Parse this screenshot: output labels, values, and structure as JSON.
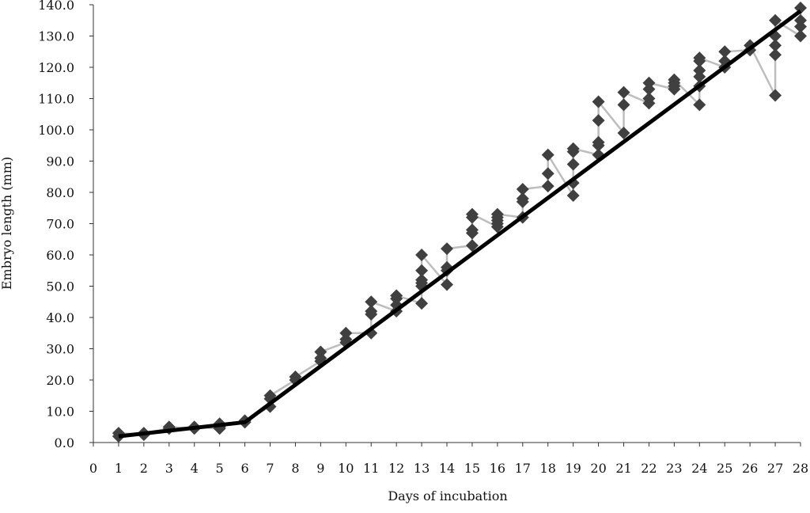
{
  "chart_data": {
    "type": "scatter",
    "x_label": "Days of incubation",
    "y_label": "Embryo length (mm)",
    "xlim": [
      0,
      28
    ],
    "ylim": [
      0,
      140
    ],
    "xticks": [
      0,
      1,
      2,
      3,
      4,
      5,
      6,
      7,
      8,
      9,
      10,
      11,
      12,
      13,
      14,
      15,
      16,
      17,
      18,
      19,
      20,
      21,
      22,
      23,
      24,
      25,
      26,
      27,
      28
    ],
    "yticks": [
      {
        "value": 0,
        "label": "0.0"
      },
      {
        "value": 10,
        "label": "10.0"
      },
      {
        "value": 20,
        "label": "20.0"
      },
      {
        "value": 30,
        "label": "30.0"
      },
      {
        "value": 40,
        "label": "40.0"
      },
      {
        "value": 50,
        "label": "50.0"
      },
      {
        "value": 60,
        "label": "60.0"
      },
      {
        "value": 70,
        "label": "70.0"
      },
      {
        "value": 80,
        "label": "80.0"
      },
      {
        "value": 90,
        "label": "90.0"
      },
      {
        "value": 100,
        "label": "100.0"
      },
      {
        "value": 110,
        "label": "110.0"
      },
      {
        "value": 120,
        "label": "120.0"
      },
      {
        "value": 130,
        "label": "130.0"
      },
      {
        "value": 140,
        "label": "140.0"
      }
    ],
    "series": [
      {
        "color": "#404040",
        "line_color": "#bdbdbd",
        "markers": true,
        "line_width": 2.5,
        "x": [
          1,
          1,
          2,
          2,
          3,
          3,
          4,
          4,
          5,
          5,
          5,
          6,
          6,
          7,
          7,
          7,
          8,
          8,
          9,
          9,
          9,
          10,
          10,
          10,
          11,
          11,
          11,
          11,
          12,
          12,
          12,
          12,
          13,
          13,
          13,
          13,
          13,
          13,
          14,
          14,
          14,
          14,
          15,
          15,
          15,
          15,
          15,
          16,
          16,
          16,
          16,
          16,
          17,
          17,
          17,
          17,
          18,
          18,
          18,
          19,
          19,
          19,
          19,
          19,
          20,
          20,
          20,
          20,
          20,
          21,
          21,
          21,
          22,
          22,
          22,
          22,
          23,
          23,
          23,
          23,
          24,
          24,
          24,
          24,
          24,
          24,
          25,
          25,
          25,
          26,
          26,
          27,
          27,
          27,
          27,
          27,
          28,
          28,
          28,
          28
        ],
        "values": [
          2,
          3,
          2.5,
          3,
          4.5,
          5,
          4.5,
          5,
          4.5,
          5,
          6,
          6.5,
          7,
          11.5,
          14,
          15,
          20,
          21,
          26,
          27,
          29,
          32,
          33,
          35,
          35,
          41,
          42,
          45,
          42,
          44,
          46,
          47,
          44.5,
          50,
          51,
          52,
          55,
          60,
          50.5,
          55,
          56,
          62,
          63,
          67,
          68,
          72,
          73,
          69,
          70,
          71,
          72,
          73,
          72,
          77,
          78,
          81,
          82,
          86,
          92,
          79,
          83,
          89,
          93,
          94,
          92,
          95,
          96,
          103,
          109,
          99,
          108,
          112,
          108.5,
          110,
          113,
          115,
          113,
          114,
          115,
          116,
          108,
          114,
          117,
          119,
          122,
          123,
          120,
          122,
          125,
          125.5,
          127,
          111,
          124,
          127,
          130,
          135,
          130,
          133,
          135,
          139
        ]
      },
      {
        "color": "#000000",
        "line_color": "#000000",
        "markers": false,
        "line_width": 5,
        "x": [
          1,
          6,
          28
        ],
        "values": [
          2,
          6.5,
          138
        ]
      }
    ]
  }
}
